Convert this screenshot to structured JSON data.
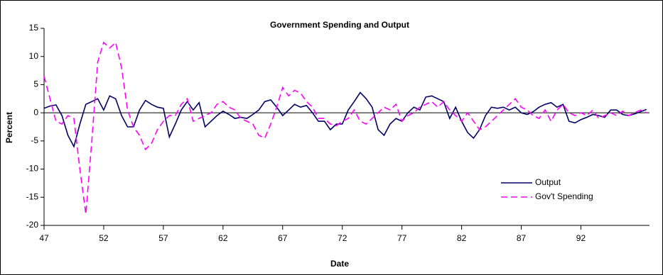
{
  "chart_data": {
    "type": "line",
    "title": "Government Spending and Output",
    "x_label": "Date",
    "y_label": "Percent",
    "x": [
      47,
      47.5,
      48,
      48.5,
      49,
      49.5,
      50,
      50.5,
      51,
      51.5,
      52,
      52.5,
      53,
      53.5,
      54,
      54.5,
      55,
      55.5,
      56,
      56.5,
      57,
      57.5,
      58,
      58.5,
      59,
      59.5,
      60,
      60.5,
      61,
      61.5,
      62,
      62.5,
      63,
      63.5,
      64,
      64.5,
      65,
      65.5,
      66,
      66.5,
      67,
      67.5,
      68,
      68.5,
      69,
      69.5,
      70,
      70.5,
      71,
      71.5,
      72,
      72.5,
      73,
      73.5,
      74,
      74.5,
      75,
      75.5,
      76,
      76.5,
      77,
      77.5,
      78,
      78.5,
      79,
      79.5,
      80,
      80.5,
      81,
      81.5,
      82,
      82.5,
      83,
      83.5,
      84,
      84.5,
      85,
      85.5,
      86,
      86.5,
      87,
      87.5,
      88,
      88.5,
      89,
      89.5,
      90,
      90.5,
      91,
      91.5,
      92,
      92.5,
      93,
      93.5,
      94,
      94.5,
      95,
      95.5,
      96,
      96.5,
      97,
      97.5
    ],
    "series": [
      {
        "name": "Output",
        "color": "#000066",
        "dash": false,
        "values": [
          0.8,
          1.2,
          1.4,
          -0.5,
          -4,
          -6,
          -2,
          1.5,
          2,
          2.5,
          0.5,
          3,
          2.5,
          -0.5,
          -2.5,
          -2.5,
          0.5,
          2.2,
          1.5,
          1,
          0.8,
          -4.3,
          -2,
          0.5,
          2,
          0.5,
          1.8,
          -2.5,
          -1.5,
          -0.5,
          0.3,
          -0.3,
          -1,
          -0.8,
          -1,
          -0.3,
          0.5,
          2,
          2.3,
          1,
          -0.5,
          0.5,
          1.5,
          1,
          1.3,
          0,
          -1.5,
          -1.5,
          -3,
          -2,
          -2,
          0.5,
          2,
          3.6,
          2.5,
          1,
          -3,
          -4,
          -2,
          -1,
          -1.5,
          0,
          1,
          0.5,
          2.8,
          3,
          2.5,
          2,
          -1,
          1,
          -1.5,
          -3.5,
          -4.5,
          -3,
          -0.5,
          1,
          0.8,
          1,
          0.5,
          1,
          0,
          -0.3,
          0.2,
          1,
          1.5,
          1.8,
          1,
          1.5,
          -1.5,
          -1.8,
          -1.2,
          -0.8,
          -0.3,
          -0.5,
          -0.8,
          0.5,
          0.5,
          -0.3,
          -0.5,
          -0.2,
          0.2,
          0.6
        ]
      },
      {
        "name": "Gov't Spending",
        "color": "#ff00ff",
        "dash": true,
        "values": [
          6.5,
          2.5,
          -1.5,
          -2,
          -0.5,
          -1,
          -10,
          -18,
          -5,
          9,
          12.5,
          11.5,
          12.5,
          8,
          0.5,
          -2.5,
          -4,
          -6.5,
          -5.5,
          -3,
          -1.5,
          -0.5,
          -0.5,
          1.5,
          2.5,
          -1.5,
          -1,
          -0.5,
          0,
          1.5,
          2,
          1,
          0.5,
          -1,
          -1.5,
          -2,
          -4,
          -4.5,
          -2,
          1,
          4.5,
          3,
          4,
          3.5,
          2,
          1,
          -1,
          -1,
          -2,
          -2.3,
          -1.5,
          -1,
          0.5,
          -1.5,
          -2,
          -1,
          0,
          1,
          0.5,
          1.5,
          -1.5,
          -0.5,
          0,
          1,
          1.5,
          2,
          1,
          2,
          0.5,
          -0.5,
          -1.5,
          0,
          -1.5,
          -3,
          -2.5,
          -1.5,
          -0.5,
          0.5,
          1.5,
          2.5,
          1,
          0.5,
          -0.5,
          -1,
          0.5,
          -1.5,
          0.5,
          1.5,
          0,
          -0.5,
          0,
          -0.5,
          0.5,
          -1,
          -0.5,
          0,
          -0.5,
          0.3,
          -0.5,
          0,
          0.5,
          0
        ]
      }
    ],
    "xlim": [
      47,
      97.75
    ],
    "xticks": [
      47,
      52,
      57,
      62,
      67,
      72,
      77,
      82,
      87,
      92
    ],
    "ylim": [
      -20,
      15
    ],
    "yticks": [
      -20,
      -15,
      -10,
      -5,
      0,
      5,
      10,
      15
    ],
    "zero_line": true,
    "legend": "lower right"
  }
}
